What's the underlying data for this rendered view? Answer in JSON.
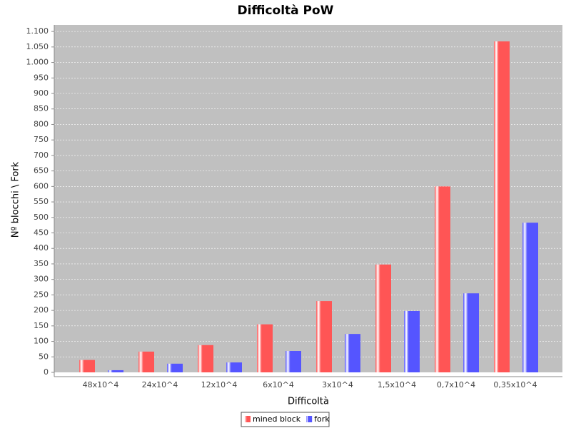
{
  "chart_data": {
    "type": "bar",
    "title": "Difficoltà PoW",
    "x_label": "Difficoltà",
    "y_label": "Nº blocchi \\ Fork",
    "categories": [
      "48x10^4",
      "24x10^4",
      "12x10^4",
      "6x10^4",
      "3x10^4",
      "1,5x10^4",
      "0,7x10^4",
      "0,35x10^4"
    ],
    "series": [
      {
        "name": "mined block",
        "color": "#ff5555",
        "values": [
          40,
          67,
          88,
          155,
          230,
          348,
          600,
          1068
        ]
      },
      {
        "name": "fork",
        "color": "#5555ff",
        "values": [
          7,
          28,
          32,
          69,
          124,
          198,
          255,
          483
        ]
      }
    ],
    "ylim": [
      0,
      1121
    ],
    "yticks": [
      0,
      50,
      100,
      150,
      200,
      250,
      300,
      350,
      400,
      450,
      500,
      550,
      600,
      650,
      700,
      750,
      800,
      850,
      900,
      950,
      {
        "value": 1000,
        "label": "1.000"
      },
      {
        "value": 1050,
        "label": "1.050"
      },
      {
        "value": 1100,
        "label": "1.100"
      }
    ],
    "grid": true,
    "legend": "bottom"
  }
}
